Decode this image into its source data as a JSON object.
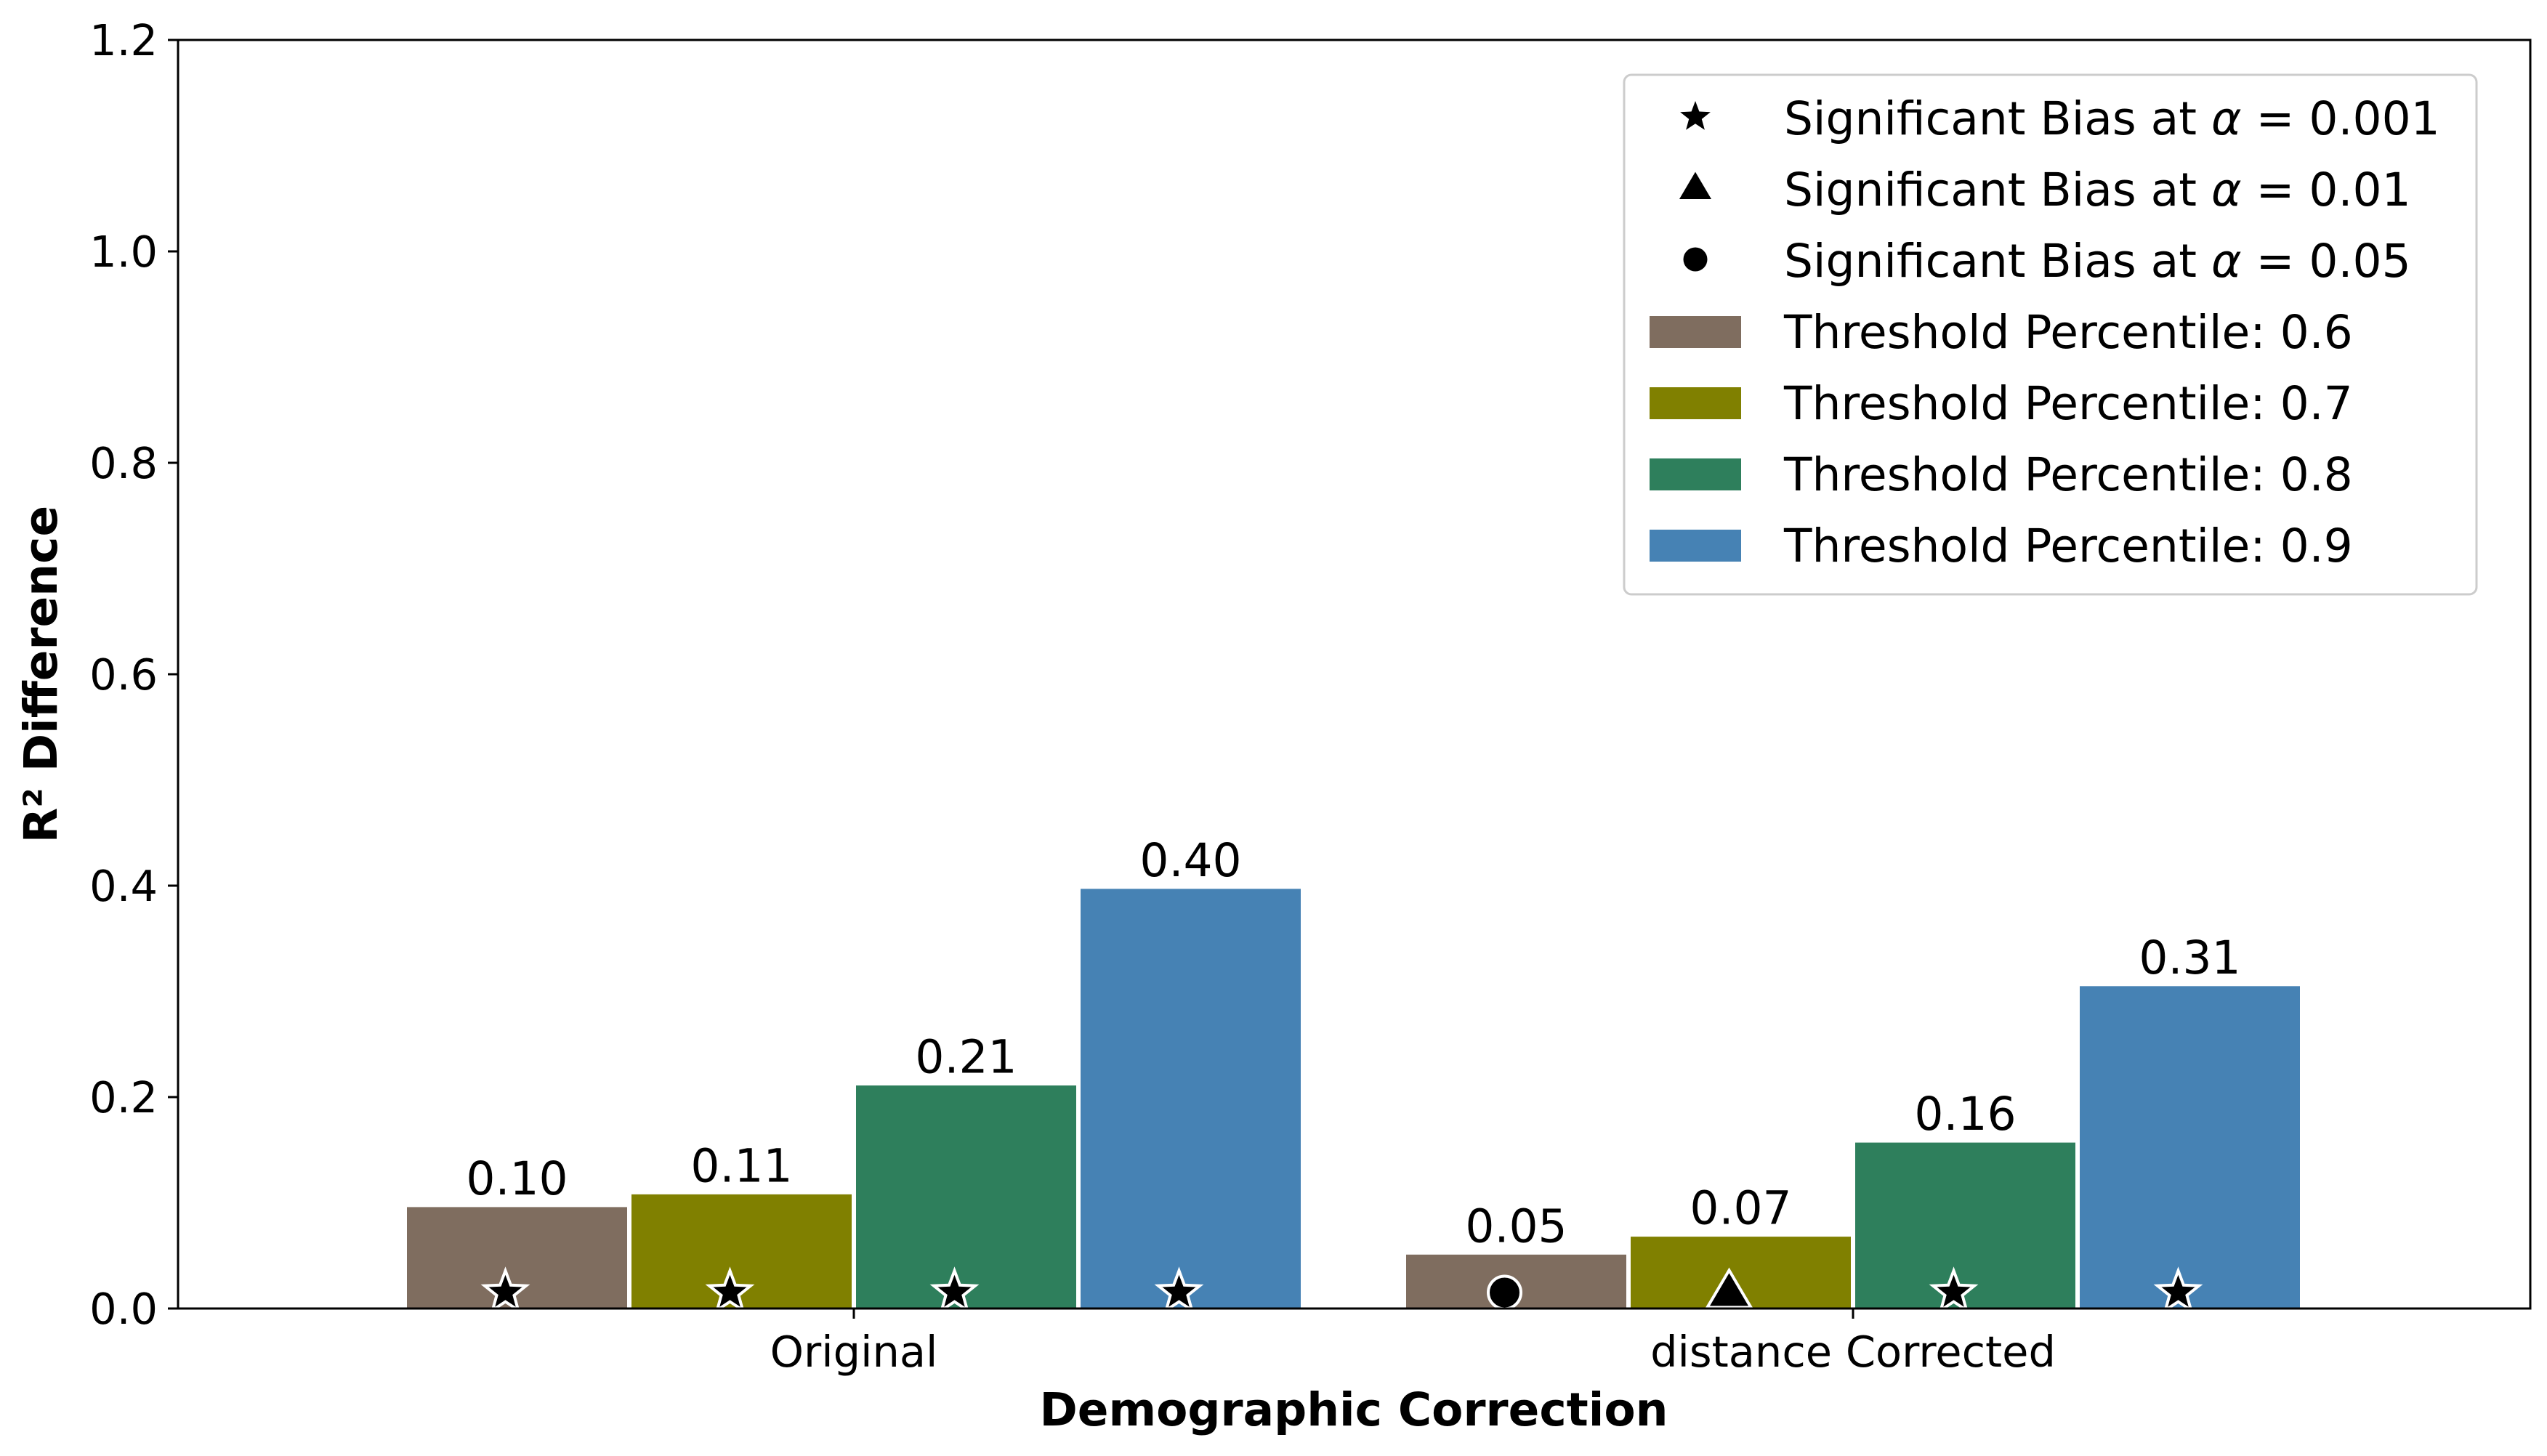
{
  "chart_data": {
    "type": "bar",
    "xlabel": "Demographic Correction",
    "ylabel": "R² Difference",
    "ylim": [
      0,
      1.2
    ],
    "yticks": [
      "0.0",
      "0.2",
      "0.4",
      "0.6",
      "0.8",
      "1.0",
      "1.2"
    ],
    "ytick_values": [
      0,
      0.2,
      0.4,
      0.6,
      0.8,
      1.0,
      1.2
    ],
    "grid": false,
    "legend_position": "top-right",
    "categories": [
      "Original",
      "distance Corrected"
    ],
    "series": [
      {
        "name": "Threshold Percentile: 0.6",
        "color": "#7f6d5f",
        "values": [
          0.097,
          0.052
        ],
        "labels": [
          "0.10",
          "0.05"
        ],
        "markers": [
          "star",
          "circle"
        ]
      },
      {
        "name": "Threshold Percentile: 0.7",
        "color": "#808000",
        "values": [
          0.109,
          0.069
        ],
        "labels": [
          "0.11",
          "0.07"
        ],
        "markers": [
          "star",
          "triangle"
        ]
      },
      {
        "name": "Threshold Percentile: 0.8",
        "color": "#2e7f5c",
        "values": [
          0.212,
          0.158
        ],
        "labels": [
          "0.21",
          "0.16"
        ],
        "markers": [
          "star",
          "star"
        ]
      },
      {
        "name": "Threshold Percentile: 0.9",
        "color": "#4682b4",
        "values": [
          0.398,
          0.306
        ],
        "labels": [
          "0.40",
          "0.31"
        ],
        "markers": [
          "star",
          "star"
        ]
      }
    ],
    "marker_legend": [
      {
        "symbol": "star",
        "prefix": "Significant Bias at ",
        "alpha": "α",
        "suffix": " = 0.001"
      },
      {
        "symbol": "triangle",
        "prefix": "Significant Bias at ",
        "alpha": "α",
        "suffix": " = 0.01"
      },
      {
        "symbol": "circle",
        "prefix": "Significant Bias at ",
        "alpha": "α",
        "suffix": " = 0.05"
      }
    ]
  }
}
